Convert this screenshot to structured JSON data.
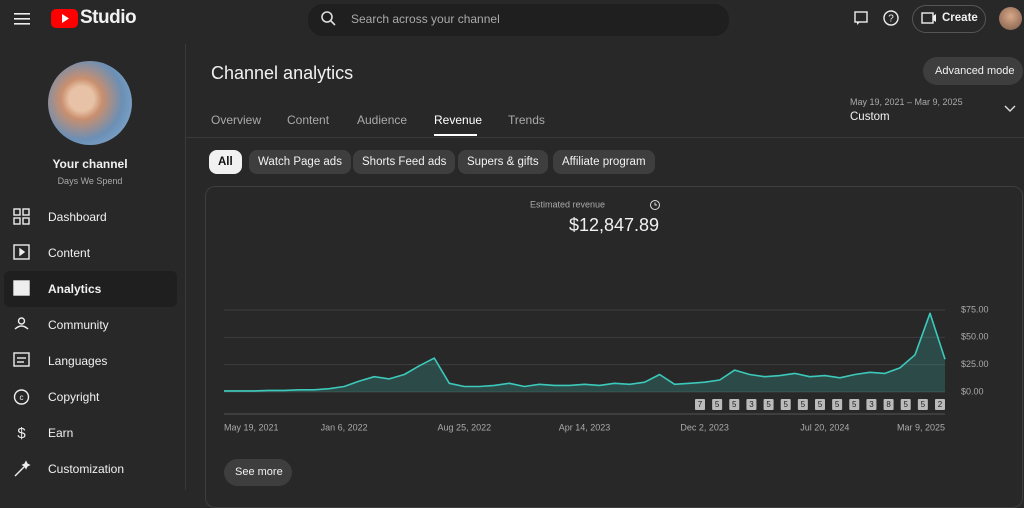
{
  "header": {
    "logo": "Studio",
    "search": "Search across your channel",
    "create": "Create"
  },
  "sidebar": {
    "channel_title": "Your channel",
    "channel_name": "Days We Spend",
    "items": [
      "Dashboard",
      "Content",
      "Analytics",
      "Community",
      "Languages",
      "Copyright",
      "Earn",
      "Customization"
    ]
  },
  "page": {
    "title": "Channel analytics",
    "advanced": "Advanced mode",
    "tabs": [
      "Overview",
      "Content",
      "Audience",
      "Revenue",
      "Trends"
    ],
    "date_range": "May 19, 2021 – Mar 9, 2025",
    "period": "Custom",
    "chips": [
      "All",
      "Watch Page ads",
      "Shorts Feed ads",
      "Supers & gifts",
      "Affiliate program"
    ],
    "see_more": "See more"
  },
  "chart_data": {
    "type": "line",
    "title": "Estimated revenue",
    "total": "$12,847.89",
    "categories": [
      "May 19, 2021",
      null,
      null,
      null,
      null,
      null,
      null,
      null,
      "Jan 6, 2022",
      null,
      null,
      null,
      null,
      null,
      null,
      null,
      "Aug 25, 2022",
      null,
      null,
      null,
      null,
      null,
      null,
      null,
      "Apr 14, 2023",
      null,
      null,
      null,
      null,
      null,
      null,
      null,
      "Dec 2, 2023",
      null,
      null,
      null,
      null,
      null,
      null,
      null,
      "Jul 20, 2024",
      null,
      null,
      null,
      null,
      null,
      null,
      null,
      "Mar 9, 2025"
    ],
    "values": [
      1,
      1,
      1,
      1.5,
      1.5,
      2,
      2,
      3,
      5,
      10,
      14,
      12,
      16,
      24,
      31,
      8,
      5,
      5,
      6,
      8,
      5,
      7,
      6,
      6,
      7,
      6,
      8,
      7,
      9,
      16,
      7,
      8,
      9,
      11,
      20,
      16,
      14,
      15,
      17,
      14,
      15,
      13,
      16,
      18,
      17,
      22,
      34,
      72,
      30
    ],
    "color": "#3cc9bb",
    "ylim": [
      0,
      75
    ],
    "yticks": [
      {
        "value": 0,
        "label": "$0.00"
      },
      {
        "value": 25,
        "label": "$25.00"
      },
      {
        "value": 50,
        "label": "$50.00"
      },
      {
        "value": 75,
        "label": "$75.00"
      }
    ],
    "grid": true,
    "annotations": [
      "7",
      "5",
      "5",
      "3",
      "5",
      "5",
      "5",
      "5",
      "5",
      "5",
      "3",
      "8",
      "5",
      "5",
      "2"
    ]
  }
}
